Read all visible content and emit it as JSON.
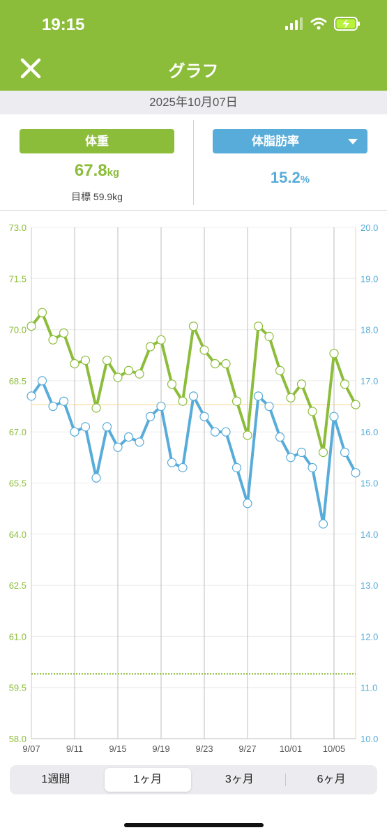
{
  "status": {
    "time": "19:15"
  },
  "nav": {
    "title": "グラフ"
  },
  "date": "2025年10月07日",
  "weight": {
    "label": "体重",
    "value": "67.8",
    "unit": "kg",
    "goal": "目標 59.9kg"
  },
  "body_fat": {
    "label": "体脂肪率",
    "value": "15.2",
    "unit": "%"
  },
  "colors": {
    "weight": "#8cbd3a",
    "body_fat": "#58acd9",
    "header": "#8cbd3a"
  },
  "chart_data": {
    "type": "line",
    "x": [
      "9/07",
      "9/08",
      "9/09",
      "9/10",
      "9/11",
      "9/12",
      "9/13",
      "9/14",
      "9/15",
      "9/16",
      "9/17",
      "9/18",
      "9/19",
      "9/20",
      "9/21",
      "9/22",
      "9/23",
      "9/24",
      "9/25",
      "9/26",
      "9/27",
      "9/28",
      "9/29",
      "9/30",
      "10/01",
      "10/02",
      "10/03",
      "10/04",
      "10/05",
      "10/06",
      "10/07"
    ],
    "x_ticks": [
      "9/07",
      "9/11",
      "9/15",
      "9/19",
      "9/23",
      "9/27",
      "10/01",
      "10/05"
    ],
    "series": [
      {
        "axis": "left",
        "color": "#8cbd3a",
        "values": [
          70.1,
          70.5,
          69.7,
          69.9,
          69.0,
          69.1,
          67.7,
          69.1,
          68.6,
          68.8,
          68.7,
          69.5,
          69.7,
          68.4,
          67.9,
          70.1,
          69.4,
          69.0,
          69.0,
          67.9,
          66.9,
          70.1,
          69.8,
          68.8,
          68.0,
          68.4,
          67.6,
          66.4,
          69.3,
          68.4,
          67.8
        ]
      },
      {
        "axis": "right",
        "color": "#58acd9",
        "values": [
          16.7,
          17.0,
          16.5,
          16.6,
          16.0,
          16.1,
          15.1,
          16.1,
          15.7,
          15.9,
          15.8,
          16.3,
          16.5,
          15.4,
          15.3,
          16.7,
          16.3,
          16.0,
          16.0,
          15.3,
          14.6,
          16.7,
          16.5,
          15.9,
          15.5,
          15.6,
          15.3,
          14.2,
          16.3,
          15.6,
          15.2
        ]
      }
    ],
    "y_left": {
      "ylim": [
        58.0,
        73.0
      ],
      "ticks": [
        "73.0",
        "71.5",
        "70.0",
        "68.5",
        "67.0",
        "65.5",
        "64.0",
        "62.5",
        "61.0",
        "59.5",
        "58.0"
      ]
    },
    "y_right": {
      "ylim": [
        10.0,
        20.0
      ],
      "ticks": [
        "20.0",
        "19.0",
        "18.0",
        "17.0",
        "16.0",
        "15.0",
        "14.0",
        "13.0",
        "12.0",
        "11.0",
        "10.0"
      ]
    },
    "reference_lines": [
      {
        "axis": "left",
        "value": 67.8,
        "style": "solid",
        "color": "#f6d58e"
      },
      {
        "axis": "left",
        "value": 59.9,
        "style": "dotted",
        "color": "#8cbd3a"
      }
    ],
    "grid": true
  },
  "periods": [
    {
      "label": "1週間",
      "active": false
    },
    {
      "label": "1ヶ月",
      "active": true
    },
    {
      "label": "3ヶ月",
      "active": false
    },
    {
      "label": "6ヶ月",
      "active": false
    }
  ]
}
